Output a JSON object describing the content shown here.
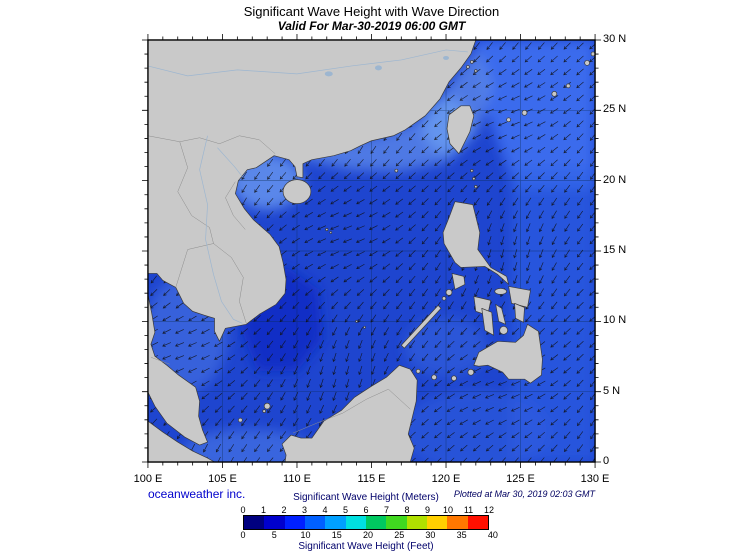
{
  "title": "Significant Wave Height with Wave Direction",
  "subtitle": "Valid For Mar-30-2019 06:00 GMT",
  "map": {
    "lon_labels": [
      "100 E",
      "105 E",
      "110 E",
      "115 E",
      "120 E",
      "125 E",
      "130 E"
    ],
    "lat_labels": [
      "30 N",
      "25 N",
      "20 N",
      "15 N",
      "10 N",
      "5 N",
      "0"
    ],
    "credit": "oceanweather inc.",
    "plotted": "Plotted at Mar 30, 2019 02:03 GMT",
    "ocean_color": "#1e45cf",
    "land_color": "#c9c9c9"
  },
  "legend": {
    "title_meters": "Significant Wave Height (Meters)",
    "title_feet": "Significant Wave Height (Feet)",
    "meters_ticks": [
      "0",
      "1",
      "2",
      "3",
      "4",
      "5",
      "6",
      "7",
      "8",
      "9",
      "10",
      "11",
      "12"
    ],
    "feet_ticks": [
      "0",
      "5",
      "10",
      "15",
      "20",
      "25",
      "30",
      "35",
      "40"
    ],
    "colors": [
      "#000080",
      "#0000cd",
      "#0020ff",
      "#0060ff",
      "#00a0ff",
      "#00e0e0",
      "#00c860",
      "#40d820",
      "#b0e000",
      "#ffd000",
      "#ff7800",
      "#ff1000"
    ]
  }
}
